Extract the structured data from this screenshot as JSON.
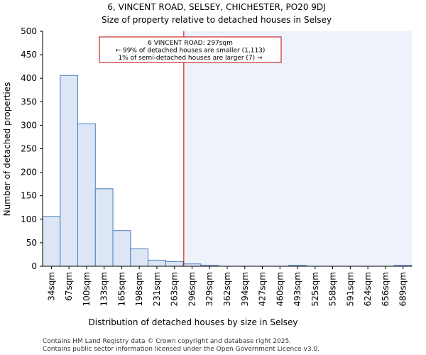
{
  "title_line1": "6, VINCENT ROAD, SELSEY, CHICHESTER, PO20 9DJ",
  "title_line2": "Size of property relative to detached houses in Selsey",
  "annotation": {
    "line1": "6 VINCENT ROAD: 297sqm",
    "line2": "← 99% of detached houses are smaller (1,113)",
    "line3": "1% of semi-detached houses are larger (7) →"
  },
  "footer": {
    "line1": "Contains HM Land Registry data © Crown copyright and database right 2025.",
    "line2": "Contains public sector information licensed under the Open Government Licence v3.0."
  },
  "colors": {
    "bar_fill": "#dce6f5",
    "bar_stroke": "#4a7ec0",
    "marker": "#c00000",
    "shade": "#eef2fb",
    "axis": "#000000"
  },
  "chart_data": {
    "type": "bar",
    "title": "6, VINCENT ROAD, SELSEY, CHICHESTER, PO20 9DJ — Size of property relative to detached houses in Selsey",
    "xlabel": "Distribution of detached houses by size in Selsey",
    "ylabel": "Number of detached properties",
    "categories": [
      "34sqm",
      "67sqm",
      "100sqm",
      "133sqm",
      "165sqm",
      "198sqm",
      "231sqm",
      "263sqm",
      "296sqm",
      "329sqm",
      "362sqm",
      "394sqm",
      "427sqm",
      "460sqm",
      "493sqm",
      "525sqm",
      "558sqm",
      "591sqm",
      "624sqm",
      "656sqm",
      "689sqm"
    ],
    "values": [
      106,
      406,
      303,
      165,
      76,
      37,
      13,
      10,
      5,
      2,
      0,
      0,
      0,
      0,
      2,
      0,
      0,
      0,
      0,
      0,
      2
    ],
    "ylim": [
      0,
      500
    ],
    "yticks": [
      0,
      50,
      100,
      150,
      200,
      250,
      300,
      350,
      400,
      450,
      500
    ],
    "marker_value": 297,
    "marker_label": "6 VINCENT ROAD: 297sqm"
  }
}
